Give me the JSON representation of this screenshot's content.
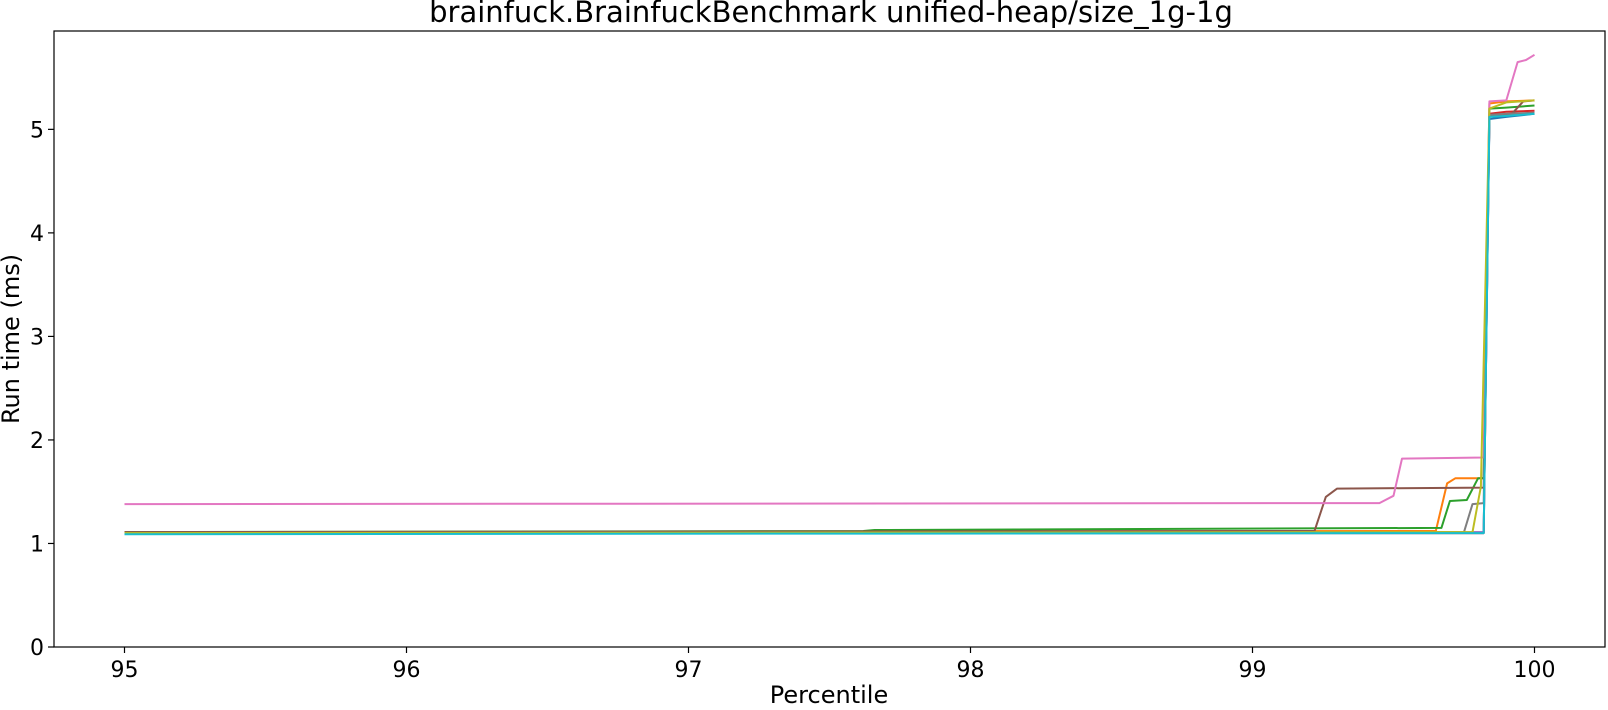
{
  "chart_data": {
    "type": "line",
    "title": "brainfuck.BrainfuckBenchmark unified-heap/size_1g-1g",
    "xlabel": "Percentile",
    "ylabel": "Run time (ms)",
    "xlim": [
      94.75,
      100.25
    ],
    "ylim": [
      0,
      5.95
    ],
    "xticks": [
      95,
      96,
      97,
      98,
      99,
      100
    ],
    "yticks": [
      0,
      1,
      2,
      3,
      4,
      5
    ],
    "grid": false,
    "series": [
      {
        "color": "#1f77b4",
        "points": [
          [
            95,
            1.1
          ],
          [
            99.82,
            1.1
          ],
          [
            99.84,
            5.1
          ],
          [
            99.9,
            5.12
          ],
          [
            100,
            5.15
          ]
        ]
      },
      {
        "color": "#ff7f0e",
        "points": [
          [
            95,
            1.11
          ],
          [
            99.65,
            1.12
          ],
          [
            99.69,
            1.58
          ],
          [
            99.72,
            1.63
          ],
          [
            99.82,
            1.63
          ],
          [
            99.84,
            5.25
          ],
          [
            99.9,
            5.27
          ],
          [
            100,
            5.28
          ]
        ]
      },
      {
        "color": "#2ca02c",
        "points": [
          [
            95,
            1.11
          ],
          [
            97.62,
            1.12
          ],
          [
            97.66,
            1.13
          ],
          [
            99.67,
            1.15
          ],
          [
            99.7,
            1.41
          ],
          [
            99.76,
            1.42
          ],
          [
            99.8,
            1.63
          ],
          [
            99.82,
            1.63
          ],
          [
            99.84,
            5.2
          ],
          [
            99.9,
            5.21
          ],
          [
            100,
            5.23
          ]
        ]
      },
      {
        "color": "#d62728",
        "points": [
          [
            95,
            1.1
          ],
          [
            99.82,
            1.1
          ],
          [
            99.84,
            5.15
          ],
          [
            99.9,
            5.17
          ],
          [
            100,
            5.18
          ]
        ]
      },
      {
        "color": "#9467bd",
        "points": [
          [
            95,
            1.1
          ],
          [
            99.82,
            1.11
          ],
          [
            99.84,
            5.13
          ],
          [
            99.9,
            5.14
          ],
          [
            100,
            5.16
          ]
        ]
      },
      {
        "color": "#8c564b",
        "points": [
          [
            95,
            1.11
          ],
          [
            99.22,
            1.12
          ],
          [
            99.26,
            1.45
          ],
          [
            99.3,
            1.53
          ],
          [
            99.82,
            1.54
          ],
          [
            99.84,
            5.13
          ],
          [
            99.92,
            5.15
          ],
          [
            99.96,
            5.27
          ],
          [
            100,
            5.28
          ]
        ]
      },
      {
        "color": "#e377c2",
        "points": [
          [
            95,
            1.38
          ],
          [
            99.45,
            1.39
          ],
          [
            99.5,
            1.46
          ],
          [
            99.53,
            1.82
          ],
          [
            99.82,
            1.83
          ],
          [
            99.84,
            5.27
          ],
          [
            99.9,
            5.28
          ],
          [
            99.94,
            5.65
          ],
          [
            99.97,
            5.67
          ],
          [
            100,
            5.72
          ]
        ]
      },
      {
        "color": "#7f7f7f",
        "points": [
          [
            95,
            1.1
          ],
          [
            99.75,
            1.11
          ],
          [
            99.78,
            1.38
          ],
          [
            99.82,
            1.39
          ],
          [
            99.84,
            5.14
          ],
          [
            99.9,
            5.15
          ],
          [
            100,
            5.16
          ]
        ]
      },
      {
        "color": "#bcbd22",
        "points": [
          [
            95,
            1.1
          ],
          [
            99.78,
            1.11
          ],
          [
            99.81,
            1.55
          ],
          [
            99.84,
            5.2
          ],
          [
            99.9,
            5.26
          ],
          [
            100,
            5.28
          ]
        ]
      },
      {
        "color": "#17becf",
        "points": [
          [
            95,
            1.09
          ],
          [
            99.82,
            1.1
          ],
          [
            99.84,
            5.12
          ],
          [
            99.9,
            5.13
          ],
          [
            100,
            5.15
          ]
        ]
      }
    ]
  }
}
